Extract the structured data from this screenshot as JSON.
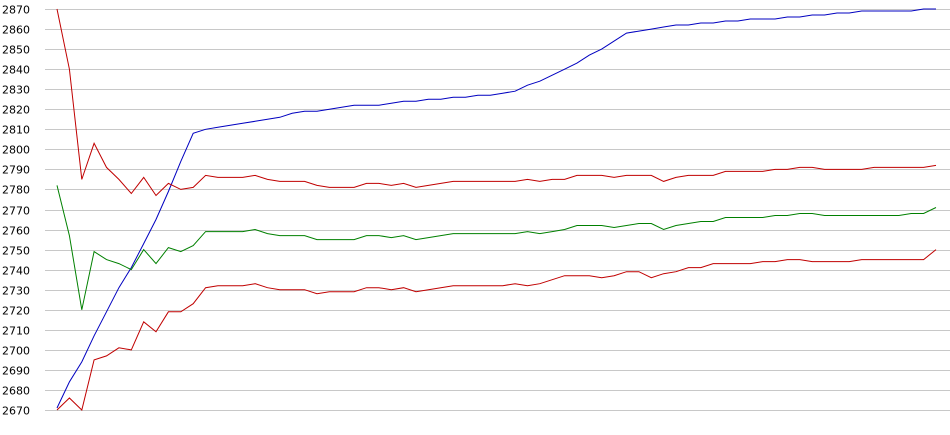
{
  "chart_data": {
    "type": "line",
    "title": "",
    "xlabel": "",
    "ylabel": "",
    "ylim": [
      2670,
      2870
    ],
    "yticks": [
      2670,
      2680,
      2690,
      2700,
      2710,
      2720,
      2730,
      2740,
      2750,
      2760,
      2770,
      2780,
      2790,
      2800,
      2810,
      2820,
      2830,
      2840,
      2850,
      2860,
      2870
    ],
    "grid": true,
    "legend": "none",
    "x": [
      1,
      2,
      3,
      4,
      5,
      6,
      7,
      8,
      9,
      10,
      11,
      12,
      13,
      14,
      15,
      16,
      17,
      18,
      19,
      20,
      21,
      22,
      23,
      24,
      25,
      26,
      27,
      28,
      29,
      30,
      31,
      32,
      33,
      34,
      35,
      36,
      37,
      38,
      39,
      40,
      41,
      42,
      43,
      44,
      45,
      46,
      47,
      48,
      49,
      50,
      51,
      52,
      53,
      54,
      55,
      56,
      57,
      58,
      59,
      60,
      61,
      62,
      63,
      64,
      65,
      66,
      67,
      68,
      69,
      70,
      71,
      72
    ],
    "series": [
      {
        "color": "#0000c0",
        "values": [
          2671,
          2684,
          2694,
          2707,
          2719,
          2731,
          2741,
          2753,
          2765,
          2779,
          2794,
          2808,
          2810,
          2811,
          2812,
          2813,
          2814,
          2815,
          2816,
          2818,
          2819,
          2819,
          2820,
          2821,
          2822,
          2822,
          2822,
          2823,
          2824,
          2824,
          2825,
          2825,
          2826,
          2826,
          2827,
          2827,
          2828,
          2829,
          2832,
          2834,
          2837,
          2840,
          2843,
          2847,
          2850,
          2854,
          2858,
          2859,
          2860,
          2861,
          2862,
          2862,
          2863,
          2863,
          2864,
          2864,
          2865,
          2865,
          2865,
          2866,
          2866,
          2867,
          2867,
          2868,
          2868,
          2869,
          2869,
          2869,
          2869,
          2869,
          2870,
          2870
        ]
      },
      {
        "color": "#c00000",
        "values": [
          2870,
          2840,
          2785,
          2803,
          2791,
          2785,
          2778,
          2786,
          2777,
          2783,
          2780,
          2781,
          2787,
          2786,
          2786,
          2786,
          2787,
          2785,
          2784,
          2784,
          2784,
          2782,
          2781,
          2781,
          2781,
          2783,
          2783,
          2782,
          2783,
          2781,
          2782,
          2783,
          2784,
          2784,
          2784,
          2784,
          2784,
          2784,
          2785,
          2784,
          2785,
          2785,
          2787,
          2787,
          2787,
          2786,
          2787,
          2787,
          2787,
          2784,
          2786,
          2787,
          2787,
          2787,
          2789,
          2789,
          2789,
          2789,
          2790,
          2790,
          2791,
          2791,
          2790,
          2790,
          2790,
          2790,
          2791,
          2791,
          2791,
          2791,
          2791,
          2792
        ]
      },
      {
        "color": "#008000",
        "values": [
          2782,
          2757,
          2720,
          2749,
          2745,
          2743,
          2740,
          2750,
          2743,
          2751,
          2749,
          2752,
          2759,
          2759,
          2759,
          2759,
          2760,
          2758,
          2757,
          2757,
          2757,
          2755,
          2755,
          2755,
          2755,
          2757,
          2757,
          2756,
          2757,
          2755,
          2756,
          2757,
          2758,
          2758,
          2758,
          2758,
          2758,
          2758,
          2759,
          2758,
          2759,
          2760,
          2762,
          2762,
          2762,
          2761,
          2762,
          2763,
          2763,
          2760,
          2762,
          2763,
          2764,
          2764,
          2766,
          2766,
          2766,
          2766,
          2767,
          2767,
          2768,
          2768,
          2767,
          2767,
          2767,
          2767,
          2767,
          2767,
          2767,
          2768,
          2768,
          2771
        ]
      },
      {
        "color": "#c00000",
        "values": [
          2670,
          2676,
          2670,
          2695,
          2697,
          2701,
          2700,
          2714,
          2709,
          2719,
          2719,
          2723,
          2731,
          2732,
          2732,
          2732,
          2733,
          2731,
          2730,
          2730,
          2730,
          2728,
          2729,
          2729,
          2729,
          2731,
          2731,
          2730,
          2731,
          2729,
          2730,
          2731,
          2732,
          2732,
          2732,
          2732,
          2732,
          2733,
          2732,
          2733,
          2735,
          2737,
          2737,
          2737,
          2736,
          2737,
          2739,
          2739,
          2736,
          2738,
          2739,
          2741,
          2741,
          2743,
          2743,
          2743,
          2743,
          2744,
          2744,
          2745,
          2745,
          2744,
          2744,
          2744,
          2744,
          2745,
          2745,
          2745,
          2745,
          2745,
          2745,
          2750
        ]
      }
    ]
  }
}
